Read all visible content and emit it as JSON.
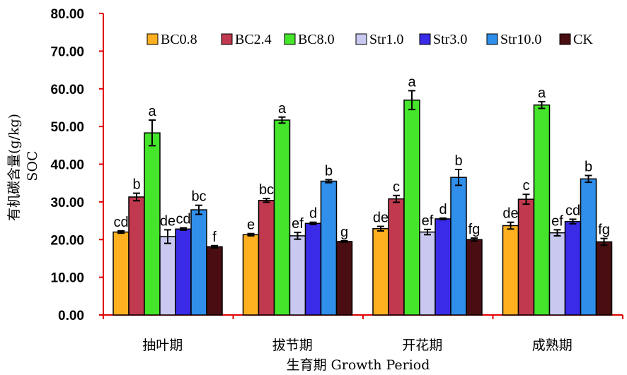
{
  "chart_data": {
    "type": "bar",
    "title": "",
    "xlabel": "生育期 Growth Period",
    "ylabel": "有机碳含量(g/kg)",
    "ylabel2": "SOC",
    "ylim": [
      0,
      80
    ],
    "yticks": [
      "0.00",
      "10.00",
      "20.00",
      "30.00",
      "40.00",
      "50.00",
      "60.00",
      "70.00",
      "80.00"
    ],
    "grid": false,
    "legend_position": "top",
    "categories": [
      "抽叶期",
      "拔节期",
      "开花期",
      "成熟期"
    ],
    "series": [
      {
        "name": "BC0.8",
        "color": "#FFB020",
        "values": [
          22.0,
          21.3,
          22.9,
          23.7
        ],
        "errors": [
          0.3,
          0.3,
          0.6,
          0.9
        ],
        "letters": [
          "cd",
          "e",
          "de",
          "de"
        ]
      },
      {
        "name": "BC2.4",
        "color": "#C0394E",
        "values": [
          31.3,
          30.4,
          30.8,
          30.7
        ],
        "errors": [
          1.0,
          0.5,
          0.9,
          1.3
        ],
        "letters": [
          "b",
          "bc",
          "c",
          "c"
        ]
      },
      {
        "name": "BC8.0",
        "color": "#44E52A",
        "values": [
          48.3,
          51.7,
          57.0,
          55.7
        ],
        "errors": [
          3.4,
          0.8,
          2.5,
          0.9
        ],
        "letters": [
          "a",
          "a",
          "a",
          "a"
        ]
      },
      {
        "name": "Str1.0",
        "color": "#C8C8F0",
        "values": [
          20.8,
          21.0,
          22.0,
          21.8
        ],
        "errors": [
          1.8,
          0.9,
          0.7,
          0.8
        ],
        "letters": [
          "de",
          "ef",
          "ef",
          "ef"
        ]
      },
      {
        "name": "Str3.0",
        "color": "#3A2BE8",
        "values": [
          22.8,
          24.3,
          25.5,
          24.8
        ],
        "errors": [
          0.3,
          0.3,
          0.2,
          0.6
        ],
        "letters": [
          "cd",
          "d",
          "d",
          "cd"
        ]
      },
      {
        "name": "Str10.0",
        "color": "#2F8FEA",
        "values": [
          27.9,
          35.5,
          36.5,
          36.1
        ],
        "errors": [
          1.2,
          0.4,
          2.1,
          0.9
        ],
        "letters": [
          "bc",
          "b",
          "b",
          "b"
        ]
      },
      {
        "name": "CK",
        "color": "#4A0E12",
        "values": [
          18.1,
          19.5,
          20.0,
          19.4
        ],
        "errors": [
          0.3,
          0.2,
          0.4,
          0.9
        ],
        "letters": [
          "f",
          "g",
          "fg",
          "fg"
        ]
      }
    ]
  }
}
